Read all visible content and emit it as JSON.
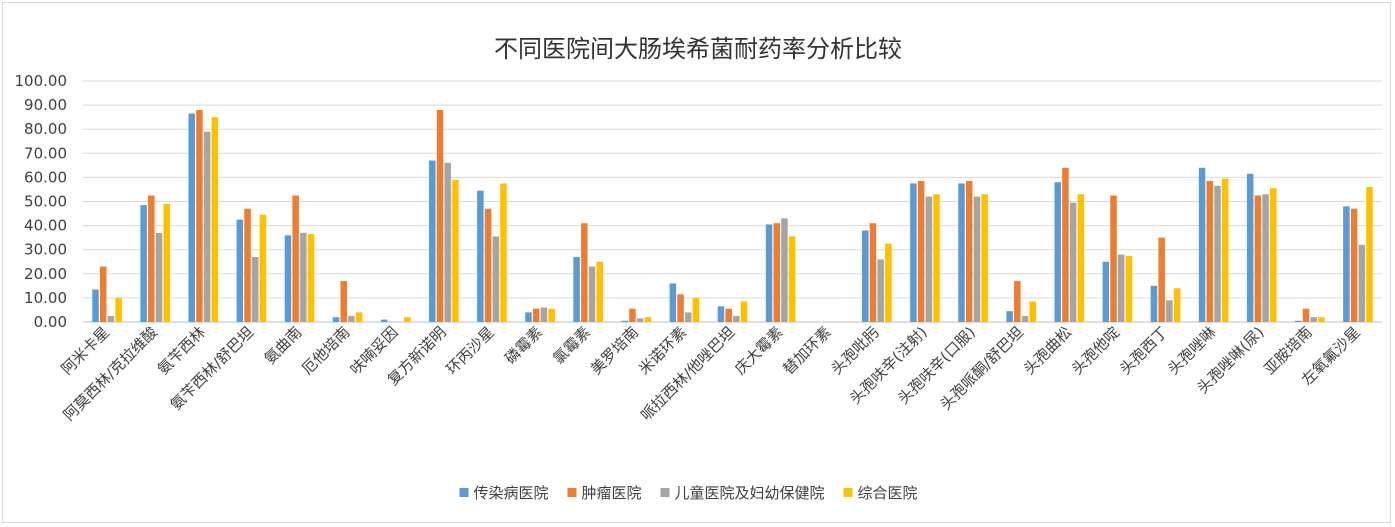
{
  "chart_data": {
    "type": "bar",
    "title": "不同医院间大肠埃希菌耐药率分析比较",
    "xlabel": "",
    "ylabel": "",
    "ylim": [
      0,
      100
    ],
    "yticks": [
      "0.00",
      "10.00",
      "20.00",
      "30.00",
      "40.00",
      "50.00",
      "60.00",
      "70.00",
      "80.00",
      "90.00",
      "100.00"
    ],
    "grid": true,
    "legend_position": "bottom",
    "categories": [
      "阿米卡星",
      "阿莫西林/克拉维酸",
      "氨苄西林",
      "氨苄西林/舒巴坦",
      "氨曲南",
      "厄他培南",
      "呋喃妥因",
      "复方新诺明",
      "环丙沙星",
      "磷霉素",
      "氯霉素",
      "美罗培南",
      "米诺环素",
      "哌拉西林/他唑巴坦",
      "庆大霉素",
      "替加环素",
      "头孢吡肟",
      "头孢呋辛(注射)",
      "头孢呋辛(口服)",
      "头孢哌酮/舒巴坦",
      "头孢曲松",
      "头孢他啶",
      "头孢西丁",
      "头孢唑啉",
      "头孢唑啉(尿)",
      "亚胺培南",
      "左氧氟沙星"
    ],
    "series": [
      {
        "name": "传染病医院",
        "color": "#5b9bd5",
        "values": [
          13.5,
          48.5,
          86.5,
          42.5,
          36,
          2,
          1,
          67,
          54.5,
          4,
          27,
          0.5,
          16,
          6.5,
          40.5,
          0,
          38,
          57.5,
          57.5,
          4.5,
          58,
          25,
          15,
          64,
          61.5,
          0.5,
          48
        ]
      },
      {
        "name": "肿瘤医院",
        "color": "#ed7d31",
        "values": [
          23,
          52.5,
          88,
          47,
          52.5,
          17,
          0,
          88,
          47,
          5.5,
          41,
          5.5,
          11.5,
          5.5,
          41,
          0,
          41,
          58.5,
          58.5,
          17,
          64,
          52.5,
          35,
          58.5,
          52.5,
          5.5,
          47
        ]
      },
      {
        "name": "儿童医院及妇幼保健院",
        "color": "#a5a5a5",
        "values": [
          2.5,
          37,
          79,
          27,
          37,
          2.5,
          0,
          66,
          35.5,
          6,
          23,
          1.5,
          4,
          2.5,
          43,
          0,
          26,
          52,
          52,
          2.5,
          49.5,
          28,
          9,
          56.5,
          53,
          2,
          32
        ]
      },
      {
        "name": "综合医院",
        "color": "#ffc000",
        "values": [
          10,
          49,
          85,
          44.5,
          36.5,
          4,
          2,
          59,
          57.5,
          5.5,
          25,
          2,
          10,
          8.5,
          35.5,
          0,
          32.5,
          53,
          53,
          8.5,
          53,
          27.5,
          14,
          59.5,
          55.5,
          2,
          56
        ]
      }
    ]
  }
}
